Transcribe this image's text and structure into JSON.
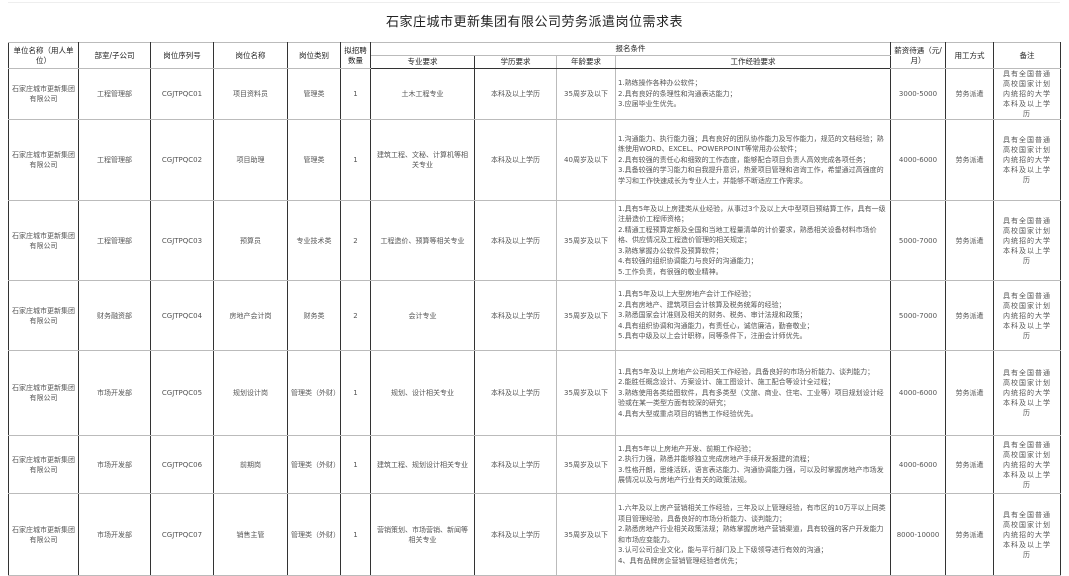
{
  "title": "石家庄城市更新集团有限公司劳务派遣岗位需求表",
  "headers": {
    "unit": "单位名称（用人单位）",
    "dept": "部室/子公司",
    "code": "岗位序列号",
    "position": "岗位名称",
    "category": "岗位类别",
    "count": "拟招聘数量",
    "conditions": "报名条件",
    "major": "专业要求",
    "education": "学历要求",
    "age": "年龄要求",
    "experience": "工作经验要求",
    "salary": "薪资待遇（元/月）",
    "employment": "用工方式",
    "remark": "备注"
  },
  "rows": [
    {
      "unit": "石家庄城市更新集团有限公司",
      "dept": "工程管理部",
      "code": "CGJTPQC01",
      "position": "项目资料员",
      "category": "管理类",
      "count": "1",
      "major": "土木工程专业",
      "education": "本科及以上学历",
      "age": "35周岁及以下",
      "experience": [
        "1.熟练操作各种办公软件；",
        "2.具有良好的条理性和沟通表达能力；",
        "3.应届毕业生优先。"
      ],
      "salary": "3000-5000",
      "employment": "劳务派遣",
      "remark": "具有全国普通高校国家计划内统招的大学本科及以上学历"
    },
    {
      "unit": "石家庄城市更新集团有限公司",
      "dept": "工程管理部",
      "code": "CGJTPQC02",
      "position": "项目助理",
      "category": "管理类",
      "count": "1",
      "major": "建筑工程、文秘、计算机等相关专业",
      "education": "本科及以上学历",
      "age": "40周岁及以下",
      "experience": [
        "1.沟通能力、执行能力强；具有良好的团队协作能力及写作能力，规范的文档经验；熟练使用WORD、EXCEL、POWERPOINT等常用办公软件；",
        "2.具有较强的责任心和细致的工作态度，能够配合项目负责人高效完成各项任务；",
        "3.具备较强的学习能力和自我提升意识，热爱项目管理和咨询工作，希望通过高强度的学习和工作快速成长为专业人士，并能够不断适应工作需求。"
      ],
      "salary": "4000-6000",
      "employment": "劳务派遣",
      "remark": "具有全国普通高校国家计划内统招的大学本科及以上学历"
    },
    {
      "unit": "石家庄城市更新集团有限公司",
      "dept": "工程管理部",
      "code": "CGJTPQC03",
      "position": "预算员",
      "category": "专业技术类",
      "count": "2",
      "major": "工程造价、预算等相关专业",
      "education": "本科及以上学历",
      "age": "35周岁及以下",
      "experience": [
        "1.具有5年及以上房建类从业经验，从事过3个及以上大中型项目预结算工作，具有一级注册造价工程师资格；",
        "2.精通工程预算定额及全国和当地工程量清单的计价要求，熟悉相关设备材料市场价格、供应情况及工程造价管理的相关规定；",
        "3.熟练掌握办公软件及预算软件；",
        "4.有较强的组织协调能力与良好的沟通能力；",
        "5.工作负责，有很强的敬业精神。"
      ],
      "salary": "5000-7000",
      "employment": "劳务派遣",
      "remark": "具有全国普通高校国家计划内统招的大学本科及以上学历"
    },
    {
      "unit": "石家庄城市更新集团有限公司",
      "dept": "财务融资部",
      "code": "CGJTPQC04",
      "position": "房地产会计岗",
      "category": "财务类",
      "count": "2",
      "major": "会计专业",
      "education": "本科及以上学历",
      "age": "35周岁及以下",
      "experience": [
        "1.具有5年及以上大型房地产会计工作经验；",
        "2.具有房地产、建筑项目会计核算及税务统筹的经验；",
        "3.熟悉国家会计准则及相关的财务、税务、审计法规和政策；",
        "4.具有组织协调和沟通能力，有责任心，诚信廉洁，勤奋敬业；",
        "5.具有中级及以上会计职称，同等条件下，注册会计师优先。"
      ],
      "salary": "5000-7000",
      "employment": "劳务派遣",
      "remark": "具有全国普通高校国家计划内统招的大学本科及以上学历"
    },
    {
      "unit": "石家庄城市更新集团有限公司",
      "dept": "市场开发部",
      "code": "CGJTPQC05",
      "position": "规划设计岗",
      "category": "管理类（外财）",
      "count": "1",
      "major": "规划、设计相关专业",
      "education": "本科及以上学历",
      "age": "35周岁及以下",
      "experience": [
        "1.具有5年及以上房地产公司相关工作经验，具备良好的市场分析能力、谈判能力；",
        "2.能胜任概念设计、方案设计、施工图设计、施工配合等设计全过程；",
        "3.熟练使用各类绘图软件，具有多类型（文旅、商业、住宅、工业等）项目规划设计经验或在某一类型方面有较深的研究；",
        "4.具有大型或重点项目的销售工作经验优先。"
      ],
      "salary": "4000-6000",
      "employment": "劳务派遣",
      "remark": "具有全国普通高校国家计划内统招的大学本科及以上学历"
    },
    {
      "unit": "石家庄城市更新集团有限公司",
      "dept": "市场开发部",
      "code": "CGJTPQC06",
      "position": "前期岗",
      "category": "管理类（外财）",
      "count": "1",
      "major": "建筑工程、规划设计相关专业",
      "education": "本科及以上学历",
      "age": "35周岁及以下",
      "experience": [
        "1.具有5年以上房地产开发、前期工作经验；",
        "2.执行力强，熟悉并能够独立完成房地产手续开发报建的流程；",
        "3.性格开朗，思维活跃，语言表达能力、沟通协调能力强，可以及时掌握房地产市场发展情况以及与房地产行业有关的政策法规。"
      ],
      "salary": "4000-6000",
      "employment": "劳务派遣",
      "remark": "具有全国普通高校国家计划内统招的大学本科及以上学历"
    },
    {
      "unit": "石家庄城市更新集团有限公司",
      "dept": "市场开发部",
      "code": "CGJTPQC07",
      "position": "销售主管",
      "category": "管理类（外财）",
      "count": "1",
      "major": "营销策划、市场营销、新闻等相关专业",
      "education": "本科及以上学历",
      "age": "35周岁及以下",
      "experience": [
        "1.六年及以上房产营销相关工作经验，三年及以上管理经验，有市区的10万平以上同类项目管理经验，具备良好的市场分析能力、谈判能力；",
        "2.熟悉房地产行业相关政策法规；熟练掌握房地产营销渠道，具有较强的客户开发能力和市场应变能力。",
        "3.认可公司企业文化，能与平行部门及上下级领导进行有效的沟通；",
        "4、具有品牌房企营销管理经验者优先；"
      ],
      "salary": "8000-10000",
      "employment": "劳务派遣",
      "remark": "具有全国普通高校国家计划内统招的大学本科及以上学历"
    }
  ]
}
